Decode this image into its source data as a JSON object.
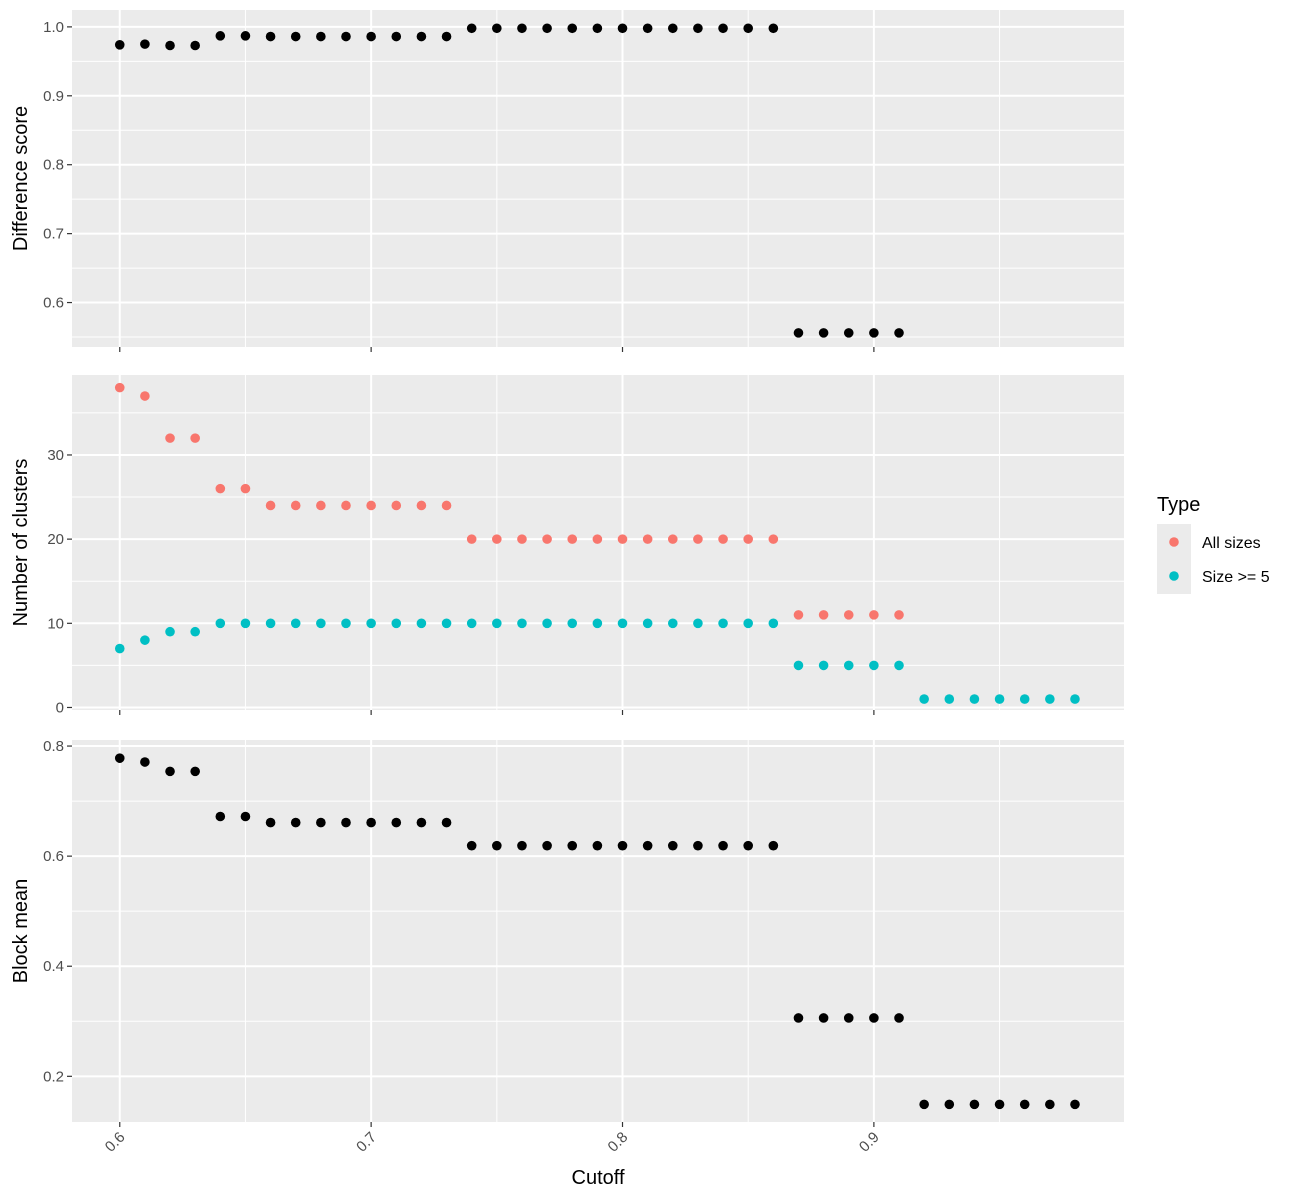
{
  "chart_data": {
    "type": "scatter",
    "x_label": "Cutoff",
    "x_ticks": [
      0.6,
      0.7,
      0.8,
      0.9
    ],
    "x_tick_labels": [
      "0.6",
      "0.7",
      "0.8",
      "0.9"
    ],
    "x_range": [
      0.581,
      0.9995
    ],
    "legend": {
      "title": "Type",
      "placement": "right",
      "entries": [
        {
          "label": "All sizes",
          "color": "#F8766D"
        },
        {
          "label": "Size >= 5",
          "color": "#00BFC4"
        }
      ]
    },
    "panels": [
      {
        "id": "difference",
        "ylabel": "Difference score",
        "ylim": [
          0.5355,
          1.0245
        ],
        "yticks": [
          0.6,
          0.7,
          0.8,
          0.9,
          1.0
        ],
        "ytick_labels": [
          "0.6",
          "0.7",
          "0.8",
          "0.9",
          "1.0"
        ],
        "series": [
          {
            "color": "#000000",
            "x": [
              0.6,
              0.61,
              0.62,
              0.63,
              0.64,
              0.65,
              0.66,
              0.67,
              0.68,
              0.69,
              0.7,
              0.71,
              0.72,
              0.73,
              0.74,
              0.75,
              0.76,
              0.77,
              0.78,
              0.79,
              0.8,
              0.81,
              0.82,
              0.83,
              0.84,
              0.85,
              0.86,
              0.87,
              0.88,
              0.89,
              0.9,
              0.91
            ],
            "y": [
              0.974,
              0.975,
              0.973,
              0.973,
              0.987,
              0.987,
              0.986,
              0.986,
              0.986,
              0.986,
              0.986,
              0.986,
              0.986,
              0.986,
              0.998,
              0.998,
              0.998,
              0.998,
              0.998,
              0.998,
              0.998,
              0.998,
              0.998,
              0.998,
              0.998,
              0.998,
              0.998,
              0.556,
              0.556,
              0.556,
              0.556,
              0.556
            ]
          }
        ]
      },
      {
        "id": "clusters",
        "ylabel": "Number of clusters",
        "ylim": [
          -0.3,
          39.5
        ],
        "yticks": [
          0,
          10,
          20,
          30
        ],
        "ytick_labels": [
          "0",
          "10",
          "20",
          "30"
        ],
        "series": [
          {
            "name": "All sizes",
            "color": "#F8766D",
            "x": [
              0.6,
              0.61,
              0.62,
              0.63,
              0.64,
              0.65,
              0.66,
              0.67,
              0.68,
              0.69,
              0.7,
              0.71,
              0.72,
              0.73,
              0.74,
              0.75,
              0.76,
              0.77,
              0.78,
              0.79,
              0.8,
              0.81,
              0.82,
              0.83,
              0.84,
              0.85,
              0.86,
              0.87,
              0.88,
              0.89,
              0.9,
              0.91
            ],
            "y": [
              38,
              37,
              32,
              32,
              26,
              26,
              24,
              24,
              24,
              24,
              24,
              24,
              24,
              24,
              20,
              20,
              20,
              20,
              20,
              20,
              20,
              20,
              20,
              20,
              20,
              20,
              20,
              11,
              11,
              11,
              11,
              11
            ]
          },
          {
            "name": "Size >= 5",
            "color": "#00BFC4",
            "x": [
              0.6,
              0.61,
              0.62,
              0.63,
              0.64,
              0.65,
              0.66,
              0.67,
              0.68,
              0.69,
              0.7,
              0.71,
              0.72,
              0.73,
              0.74,
              0.75,
              0.76,
              0.77,
              0.78,
              0.79,
              0.8,
              0.81,
              0.82,
              0.83,
              0.84,
              0.85,
              0.86,
              0.87,
              0.88,
              0.89,
              0.9,
              0.91,
              0.92,
              0.93,
              0.94,
              0.95,
              0.96,
              0.97,
              0.98
            ],
            "y": [
              7,
              8,
              9,
              9,
              10,
              10,
              10,
              10,
              10,
              10,
              10,
              10,
              10,
              10,
              10,
              10,
              10,
              10,
              10,
              10,
              10,
              10,
              10,
              10,
              10,
              10,
              10,
              5,
              5,
              5,
              5,
              5,
              1,
              1,
              1,
              1,
              1,
              1,
              1
            ]
          }
        ]
      },
      {
        "id": "blockmean",
        "ylabel": "Block mean",
        "ylim": [
          0.117,
          0.811
        ],
        "yticks": [
          0.2,
          0.4,
          0.6,
          0.8
        ],
        "ytick_labels": [
          "0.2",
          "0.4",
          "0.6",
          "0.8"
        ],
        "series": [
          {
            "color": "#000000",
            "x": [
              0.6,
              0.61,
              0.62,
              0.63,
              0.64,
              0.65,
              0.66,
              0.67,
              0.68,
              0.69,
              0.7,
              0.71,
              0.72,
              0.73,
              0.74,
              0.75,
              0.76,
              0.77,
              0.78,
              0.79,
              0.8,
              0.81,
              0.82,
              0.83,
              0.84,
              0.85,
              0.86,
              0.87,
              0.88,
              0.89,
              0.9,
              0.91,
              0.92,
              0.93,
              0.94,
              0.95,
              0.96,
              0.97,
              0.98
            ],
            "y": [
              0.778,
              0.771,
              0.754,
              0.754,
              0.672,
              0.672,
              0.661,
              0.661,
              0.661,
              0.661,
              0.661,
              0.661,
              0.661,
              0.661,
              0.619,
              0.619,
              0.619,
              0.619,
              0.619,
              0.619,
              0.619,
              0.619,
              0.619,
              0.619,
              0.619,
              0.619,
              0.619,
              0.306,
              0.306,
              0.306,
              0.306,
              0.306,
              0.149,
              0.149,
              0.149,
              0.149,
              0.149,
              0.149,
              0.149
            ]
          }
        ]
      }
    ]
  }
}
